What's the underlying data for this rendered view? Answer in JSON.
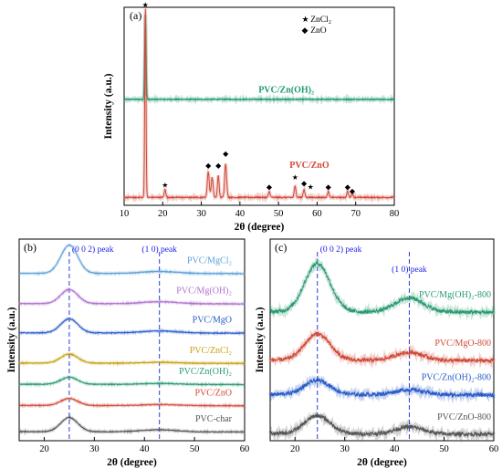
{
  "chart_data": [
    {
      "panel": "(a)",
      "type": "line",
      "xlabel": "2θ (degree)",
      "ylabel": "Intensity (a.u.)",
      "xlim": [
        10,
        80
      ],
      "xticks": [
        10,
        20,
        30,
        40,
        50,
        60,
        70,
        80
      ],
      "legend": [
        {
          "marker": "★",
          "label": "ZnCl₂"
        },
        {
          "marker": "◆",
          "label": "ZnO"
        }
      ],
      "series": [
        {
          "name": "PVC/Zn(OH)₂",
          "color": "#1f9a70",
          "baseline": 0.535,
          "peaks": [
            {
              "x": 15.5,
              "h": 0.43,
              "w": 0.25
            }
          ]
        },
        {
          "name": "PVC/ZnO",
          "color": "#d04a3a",
          "baseline": 0.04,
          "peaks": [
            {
              "x": 15.5,
              "h": 0.96,
              "w": 0.22
            },
            {
              "x": 20.6,
              "h": 0.04,
              "w": 0.3
            },
            {
              "x": 31.8,
              "h": 0.13,
              "w": 0.35
            },
            {
              "x": 32.8,
              "h": 0.1,
              "w": 0.35
            },
            {
              "x": 34.4,
              "h": 0.11,
              "w": 0.3
            },
            {
              "x": 36.3,
              "h": 0.17,
              "w": 0.35
            },
            {
              "x": 47.6,
              "h": 0.03,
              "w": 0.3
            },
            {
              "x": 54.3,
              "h": 0.06,
              "w": 0.3
            },
            {
              "x": 56.6,
              "h": 0.04,
              "w": 0.3
            },
            {
              "x": 62.9,
              "h": 0.03,
              "w": 0.3
            },
            {
              "x": 67.9,
              "h": 0.03,
              "w": 0.3
            },
            {
              "x": 69.1,
              "h": 0.02,
              "w": 0.3
            }
          ]
        }
      ],
      "markers": [
        {
          "x": 15.5,
          "y": 1.0,
          "type": "★"
        },
        {
          "x": 20.6,
          "y": 0.09,
          "type": "★"
        },
        {
          "x": 31.8,
          "y": 0.19,
          "type": "◆"
        },
        {
          "x": 34.4,
          "y": 0.19,
          "type": "◆"
        },
        {
          "x": 36.3,
          "y": 0.25,
          "type": "◆"
        },
        {
          "x": 47.6,
          "y": 0.08,
          "type": "◆"
        },
        {
          "x": 54.3,
          "y": 0.13,
          "type": "★"
        },
        {
          "x": 56.6,
          "y": 0.1,
          "type": "◆"
        },
        {
          "x": 58.3,
          "y": 0.08,
          "type": "★"
        },
        {
          "x": 62.9,
          "y": 0.08,
          "type": "◆"
        },
        {
          "x": 67.9,
          "y": 0.08,
          "type": "◆"
        },
        {
          "x": 69.1,
          "y": 0.06,
          "type": "◆"
        }
      ]
    },
    {
      "panel": "(b)",
      "type": "line",
      "xlabel": "2θ (degree)",
      "ylabel": "Intensity (a.u.)",
      "xlim": [
        15,
        60
      ],
      "xticks": [
        20,
        30,
        40,
        50,
        60
      ],
      "peak_lines": [
        {
          "x": 25,
          "label": "(0 0 2) peak"
        },
        {
          "x": 43,
          "label": "(1 0) peak"
        }
      ],
      "series": [
        {
          "name": "PVC/MgCl₂",
          "color": "#5aa0d8",
          "baseline": 0.83,
          "peak002": 0.14,
          "peak10": 0.01
        },
        {
          "name": "PVC/Mg(OH)₂",
          "color": "#b070d0",
          "baseline": 0.68,
          "peak002": 0.07,
          "peak10": 0.01
        },
        {
          "name": "PVC/MgO",
          "color": "#2a5cc8",
          "baseline": 0.535,
          "peak002": 0.07,
          "peak10": 0.01
        },
        {
          "name": "PVC/ZnCl₂",
          "color": "#c8a010",
          "baseline": 0.385,
          "peak002": 0.045,
          "peak10": 0.005
        },
        {
          "name": "PVC/Zn(OH)₂",
          "color": "#2a9a70",
          "baseline": 0.28,
          "peak002": 0.035,
          "peak10": 0.005
        },
        {
          "name": "PVC/ZnO",
          "color": "#d04a3a",
          "baseline": 0.175,
          "peak002": 0.035,
          "peak10": 0.005
        },
        {
          "name": "PVC-char",
          "color": "#555555",
          "baseline": 0.045,
          "peak002": 0.07,
          "peak10": 0.01
        }
      ]
    },
    {
      "panel": "(c)",
      "type": "line",
      "xlabel": "2θ (degree)",
      "ylabel": "Intensity (a.u.)",
      "xlim": [
        15,
        60
      ],
      "xticks": [
        20,
        30,
        40,
        50,
        60
      ],
      "peak_lines": [
        {
          "x": 24.5,
          "label": "(0 0 2) peak"
        },
        {
          "x": 43,
          "label": "(1 0) peak"
        }
      ],
      "series": [
        {
          "name": "PVC/Mg(OH)₂-800",
          "color": "#2a9a70",
          "baseline": 0.64,
          "peak002": 0.24,
          "peak10": 0.07
        },
        {
          "name": "PVC/MgO-800",
          "color": "#d04a3a",
          "baseline": 0.4,
          "peak002": 0.13,
          "peak10": 0.04
        },
        {
          "name": "PVC/Zn(OH)₂-800",
          "color": "#2a5cc8",
          "baseline": 0.23,
          "peak002": 0.07,
          "peak10": 0.025
        },
        {
          "name": "PVC/ZnO-800",
          "color": "#555555",
          "baseline": 0.035,
          "peak002": 0.09,
          "peak10": 0.035
        }
      ]
    }
  ]
}
